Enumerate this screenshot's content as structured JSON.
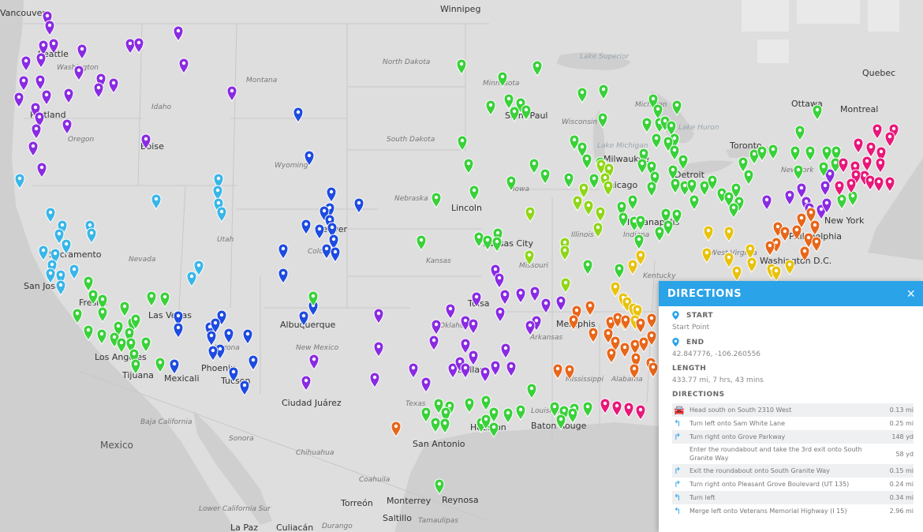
{
  "map": {
    "colors": {
      "purple": "#8a2be2",
      "blue": "#1e4be0",
      "cyan": "#39b6e8",
      "green": "#3ad13a",
      "lime": "#8fd619",
      "yellow": "#e8c20e",
      "orange": "#e8661a",
      "magenta": "#e8177a"
    },
    "labels": {
      "countries": [
        "Mexico"
      ],
      "cities": [
        "Vancouver",
        "Winnipeg",
        "Seattle",
        "Portland",
        "Boise",
        "Quebec",
        "Ottawa",
        "Montreal",
        "Toronto",
        "Saint Paul",
        "Milwaukee",
        "Detroit",
        "Denver",
        "Lincoln",
        "Kansas City",
        "Chicago",
        "Indianapolis",
        "New York",
        "Philadelphia",
        "Washington D.C.",
        "Sacramento",
        "San Jose",
        "Fresno",
        "Las Vegas",
        "Los Angeles",
        "Tijuana",
        "Mexicali",
        "Phoenix",
        "Tucson",
        "Albuquerque",
        "Ciudad Juárez",
        "Tulsa",
        "Memphis",
        "Dallas",
        "Houston",
        "San Antonio",
        "Baton Rouge",
        "Monterrey",
        "Reynosa",
        "Torreón",
        "Saltillo",
        "Culiacán",
        "La Paz"
      ],
      "states": [
        "Washington",
        "Montana",
        "North Dakota",
        "Minnesota",
        "Oregon",
        "Idaho",
        "Wyoming",
        "South Dakota",
        "Wisconsin",
        "Michigan",
        "Nebraska",
        "Iowa",
        "Utah",
        "Colorado",
        "Kansas",
        "Illinois",
        "Indiana",
        "Nevada",
        "Missouri",
        "Kentucky",
        "West Virginia",
        "New Mexico",
        "Arizona",
        "Oklahoma",
        "Arkansas",
        "Texas",
        "Louisiana",
        "Mississippi",
        "Alabama",
        "Baja California",
        "Sonora",
        "Chihuahua",
        "Coahuila",
        "Durango",
        "Tamaulipas",
        "Lower California Sur",
        "New York"
      ],
      "water": [
        "Lake Superior",
        "Lake Michigan",
        "Lake Huron"
      ]
    }
  },
  "panel": {
    "title": "DIRECTIONS",
    "close": "×",
    "start_label": "START",
    "start_value": "Start Point",
    "end_label": "END",
    "end_value": "42.847776, -106.260556",
    "length_label": "LENGTH",
    "length_value": "433.77 mi, 7 hrs, 43 mins",
    "directions_label": "DIRECTIONS",
    "steps": [
      {
        "icon": "car-icon",
        "text": "Head south on South 2310 West",
        "dist": "0.13 mi"
      },
      {
        "icon": "turn-left-icon",
        "text": "Turn left onto Sam White Lane",
        "dist": "0.25 mi"
      },
      {
        "icon": "turn-right-icon",
        "text": "Turn right onto Grove Parkway",
        "dist": "148 yd"
      },
      {
        "icon": "",
        "text": "Enter the roundabout and take the 3rd exit onto South Granite Way",
        "dist": "58 yd"
      },
      {
        "icon": "turn-right-icon",
        "text": "Exit the roundabout onto South Granite Way",
        "dist": "0.15 mi"
      },
      {
        "icon": "turn-right-icon",
        "text": "Turn right onto Pleasant Grove Boulevard (UT 135)",
        "dist": "0.24 mi"
      },
      {
        "icon": "turn-left-icon",
        "text": "Turn left",
        "dist": "0.34 mi"
      },
      {
        "icon": "merge-left-icon",
        "text": "Merge left onto Veterans Memorial Highway (I 15)",
        "dist": "2.96 mi"
      }
    ]
  }
}
